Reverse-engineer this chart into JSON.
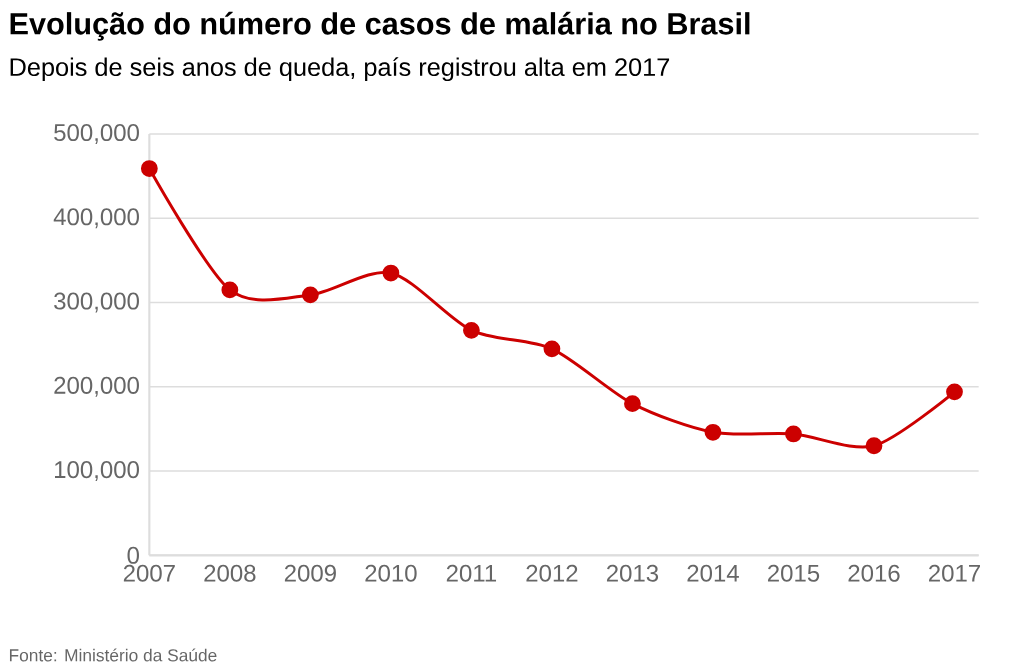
{
  "chart_data": {
    "type": "line",
    "title": "Evolução do número de casos de malária no Brasil",
    "subtitle": "Depois de seis anos de queda, país registrou alta em 2017",
    "categories": [
      "2007",
      "2008",
      "2009",
      "2010",
      "2011",
      "2012",
      "2013",
      "2014",
      "2015",
      "2016",
      "2017"
    ],
    "series": [
      {
        "color": "#cc0000",
        "values": [
          459000,
          315000,
          309000,
          335000,
          267000,
          245000,
          180000,
          146000,
          144000,
          130000,
          194000
        ]
      }
    ],
    "ylim": [
      0,
      500000
    ],
    "yticks": [
      {
        "value": 0,
        "label": "0"
      },
      {
        "value": 100000,
        "label": "100,000"
      },
      {
        "value": 200000,
        "label": "200,000"
      },
      {
        "value": 300000,
        "label": "300,000"
      },
      {
        "value": 400000,
        "label": "400,000"
      },
      {
        "value": 500000,
        "label": "500,000"
      }
    ],
    "grid": "y",
    "marker": "circle",
    "line_style": "solid",
    "annotations": [
      "Fonte: Ministério da Saúde"
    ]
  }
}
